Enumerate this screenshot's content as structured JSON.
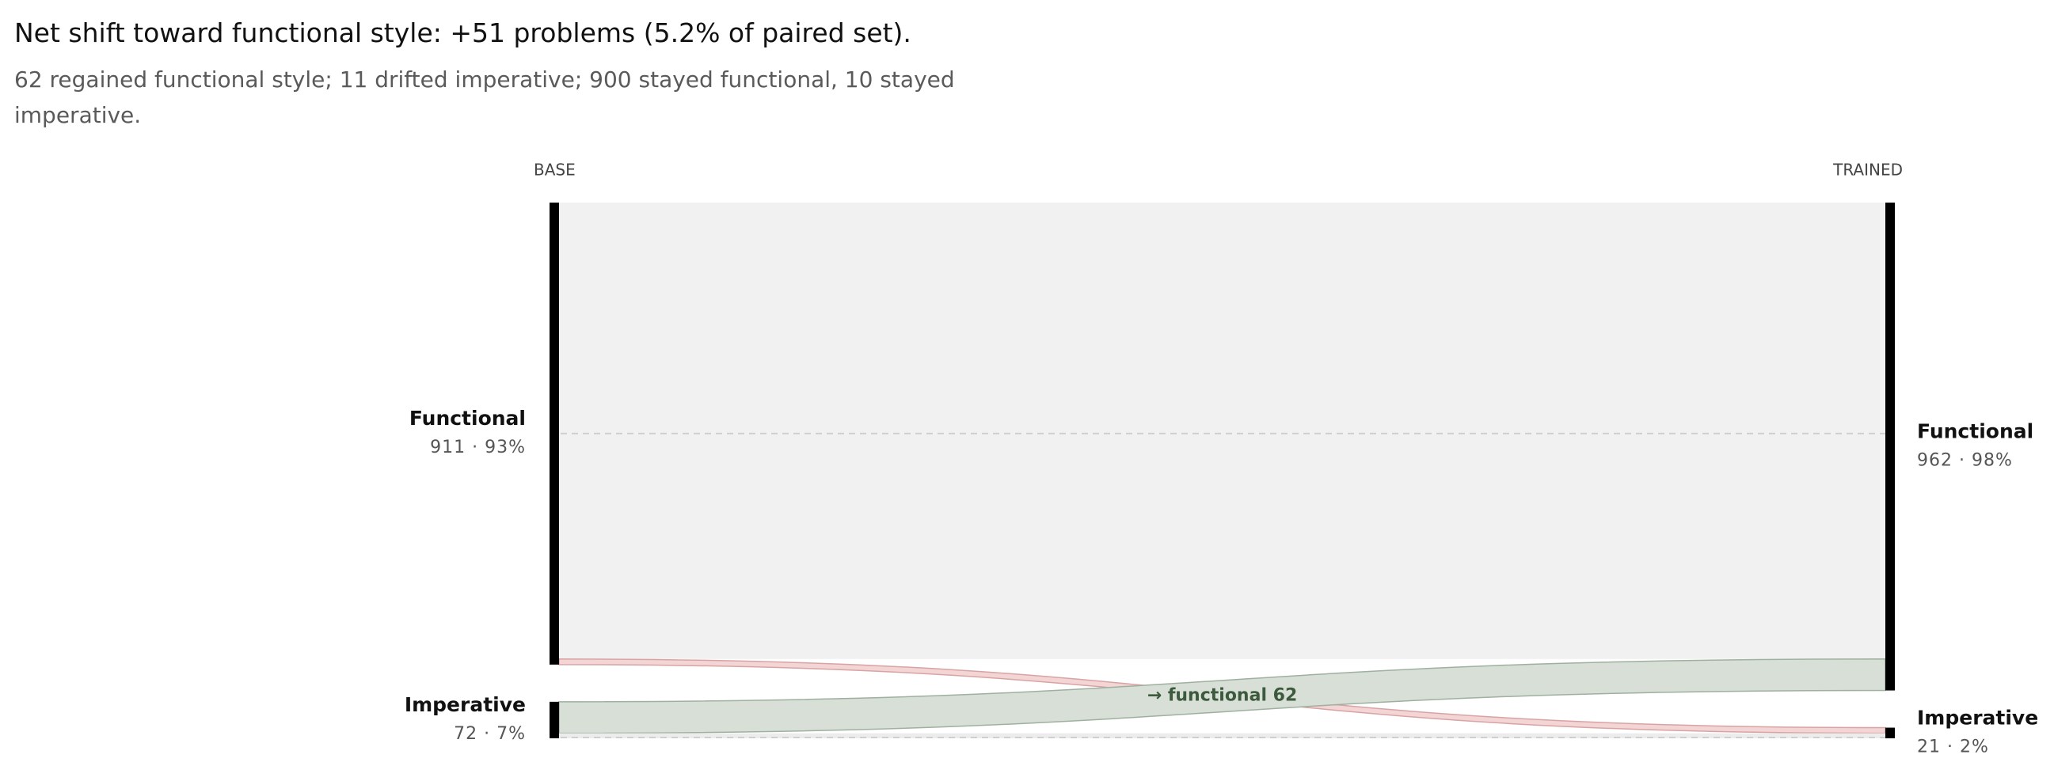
{
  "chart_data": {
    "type": "sankey",
    "title": "Net shift toward functional style: +51 problems (5.2% of paired set).",
    "subtitle": "62 regained functional style; 11 drifted imperative; 900 stayed functional, 10 stayed imperative.",
    "columns": [
      "BASE",
      "TRAINED"
    ],
    "left_nodes": [
      {
        "name": "Functional",
        "value": 911,
        "value_label": "911 · 93%"
      },
      {
        "name": "Imperative",
        "value": 72,
        "value_label": "72 · 7%"
      }
    ],
    "right_nodes": [
      {
        "name": "Functional",
        "value": 962,
        "value_label": "962 · 98%"
      },
      {
        "name": "Imperative",
        "value": 21,
        "value_label": "21 · 2%"
      }
    ],
    "flows": [
      [
        900,
        11
      ],
      [
        62,
        10
      ]
    ],
    "flow_colors": [
      [
        "#f1f1f1",
        "#f3d5d5"
      ],
      [
        "#d7dfd7",
        "#ececec"
      ]
    ],
    "flow_labels": [
      [
        null,
        null
      ],
      [
        "→ functional 62",
        null
      ]
    ],
    "node_color": "#000000"
  }
}
